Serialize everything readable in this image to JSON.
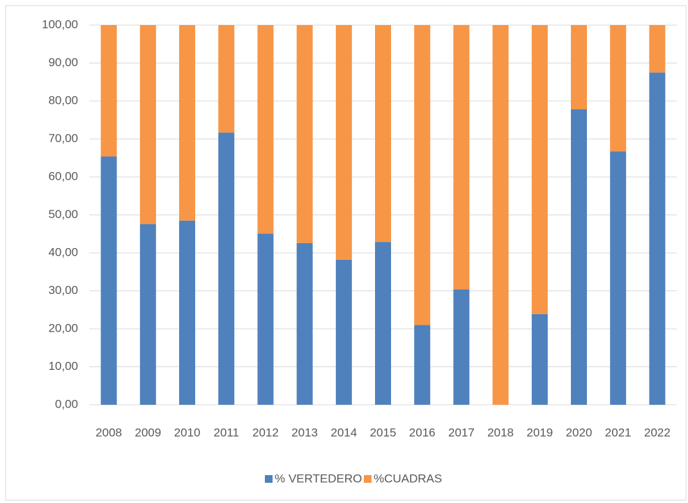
{
  "chart_data": {
    "type": "stacked_bar",
    "categories": [
      "2008",
      "2009",
      "2010",
      "2011",
      "2012",
      "2013",
      "2014",
      "2015",
      "2016",
      "2017",
      "2018",
      "2019",
      "2020",
      "2021",
      "2022"
    ],
    "series": [
      {
        "name": "% VERTEDERO",
        "color": "#4f81bd",
        "values": [
          65.4,
          47.6,
          48.5,
          71.7,
          45.1,
          42.6,
          38.2,
          42.9,
          21.0,
          30.4,
          0,
          23.9,
          77.8,
          66.7,
          87.5
        ]
      },
      {
        "name": "%CUADRAS",
        "color": "#f79646",
        "values": [
          34.6,
          52.4,
          51.5,
          28.3,
          54.9,
          57.4,
          61.8,
          57.1,
          79.0,
          69.6,
          100,
          76.1,
          22.2,
          33.3,
          12.5
        ]
      }
    ],
    "ylim": [
      0,
      100
    ],
    "yticks": [
      {
        "value": 0,
        "label": "0,00"
      },
      {
        "value": 10,
        "label": "10,00"
      },
      {
        "value": 20,
        "label": "20,00"
      },
      {
        "value": 30,
        "label": "30,00"
      },
      {
        "value": 40,
        "label": "40,00"
      },
      {
        "value": 50,
        "label": "50,00"
      },
      {
        "value": 60,
        "label": "60,00"
      },
      {
        "value": 70,
        "label": "70,00"
      },
      {
        "value": 80,
        "label": "80,00"
      },
      {
        "value": 90,
        "label": "90,00"
      },
      {
        "value": 100,
        "label": "100,00"
      }
    ],
    "grid": true,
    "legend": "bottom"
  }
}
